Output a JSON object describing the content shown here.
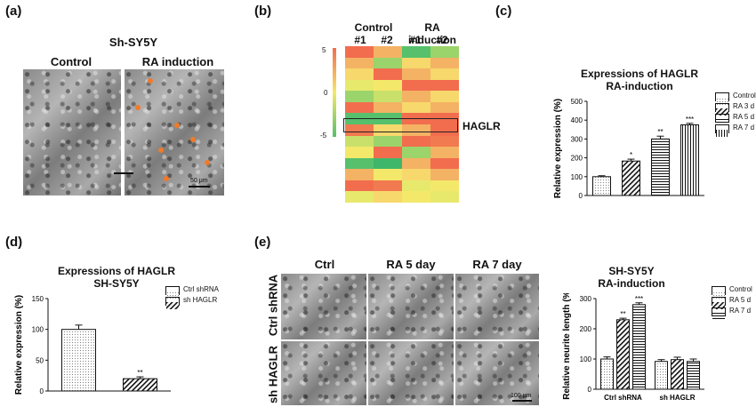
{
  "panel_labels": {
    "a": "(a)",
    "b": "(b)",
    "c": "(c)",
    "d": "(d)",
    "e": "(e)"
  },
  "panel_a": {
    "title": "Sh-SY5Y",
    "control_label": "Control",
    "ra_label": "RA induction",
    "scale_bar": "50 μm"
  },
  "panel_b": {
    "control_label": "Control",
    "ra_label": "RA induction",
    "col_labels": [
      "#1",
      "#2",
      "#1",
      "#2"
    ],
    "colorbar_ticks": [
      "5",
      "0",
      "-5"
    ],
    "highlight_label": "HAGLR"
  },
  "panel_e_images": {
    "col_labels": [
      "Ctrl",
      "RA 5 day",
      "RA 7 day"
    ],
    "row_labels": [
      "Ctrl shRNA",
      "sh HAGLR"
    ],
    "scale_bar": "100 μm"
  },
  "chart_data": [
    {
      "id": "c",
      "type": "bar",
      "title": "Expressions of HAGLR",
      "subtitle": "RA-induction",
      "ylabel": "Relative expression (%)",
      "ylim": [
        0,
        500
      ],
      "yticks": [
        "0",
        "100",
        "200",
        "300",
        "400",
        "500"
      ],
      "series": [
        {
          "name": "Control",
          "values": [
            100
          ],
          "pattern": "dots",
          "sig": ""
        },
        {
          "name": "RA 3 d",
          "values": [
            183
          ],
          "pattern": "diag",
          "sig": "*"
        },
        {
          "name": "RA 5 d",
          "values": [
            300
          ],
          "pattern": "horiz",
          "sig": "**"
        },
        {
          "name": "RA 7 d",
          "values": [
            375
          ],
          "pattern": "vert",
          "sig": "***"
        }
      ],
      "errors": [
        5,
        10,
        15,
        8
      ],
      "legend_position": "right"
    },
    {
      "id": "d",
      "type": "bar",
      "title": "Expressions of HAGLR",
      "subtitle": "SH-SY5Y",
      "ylabel": "Relative expression (%)",
      "ylim": [
        0,
        150
      ],
      "yticks": [
        "0",
        "50",
        "100",
        "150"
      ],
      "series": [
        {
          "name": "Ctrl shRNA",
          "values": [
            100
          ],
          "pattern": "dots",
          "sig": ""
        },
        {
          "name": "sh HAGLR",
          "values": [
            20
          ],
          "pattern": "diag",
          "sig": "**"
        }
      ],
      "errors": [
        7,
        3
      ],
      "legend_position": "right"
    },
    {
      "id": "e",
      "type": "bar",
      "title": "SH-SY5Y",
      "subtitle": "RA-induction",
      "ylabel": "Relative neurite length (%)",
      "ylim": [
        0,
        300
      ],
      "yticks": [
        "0",
        "100",
        "200",
        "300"
      ],
      "categories": [
        "Ctrl shRNA",
        "sh HAGLR"
      ],
      "series": [
        {
          "name": "Control",
          "values": [
            100,
            92
          ],
          "pattern": "dots",
          "sig": [
            "",
            ""
          ]
        },
        {
          "name": "RA 5 d",
          "values": [
            230,
            98
          ],
          "pattern": "diag",
          "sig": [
            "**",
            ""
          ]
        },
        {
          "name": "RA 7 d",
          "values": [
            280,
            92
          ],
          "pattern": "horiz",
          "sig": [
            "***",
            ""
          ]
        }
      ],
      "errors": [
        [
          7,
          6
        ],
        [
          5,
          8
        ],
        [
          6,
          8
        ]
      ],
      "legend_position": "right"
    }
  ]
}
